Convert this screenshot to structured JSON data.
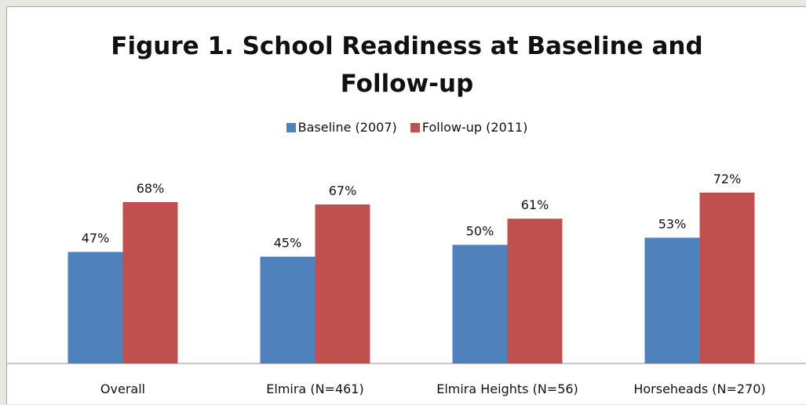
{
  "chart_data": {
    "type": "bar",
    "title_line1": "Figure 1.  School Readiness at Baseline and",
    "title_line2": "Follow-up",
    "categories": [
      "Overall",
      "Elmira (N=461)",
      "Elmira Heights (N=56)",
      "Horseheads (N=270)"
    ],
    "series": [
      {
        "name": "Baseline (2007)",
        "color": "#4f81bd",
        "values": [
          47,
          45,
          50,
          53
        ],
        "labels": [
          "47%",
          "45%",
          "50%",
          "53%"
        ]
      },
      {
        "name": "Follow-up (2011)",
        "color": "#c0504d",
        "values": [
          68,
          67,
          61,
          72
        ],
        "labels": [
          "68%",
          "67%",
          "61%",
          "72%"
        ]
      }
    ],
    "value_unit": "%",
    "ylim": [
      0,
      100
    ],
    "legend_position": "top",
    "grid": false,
    "xlabel": "",
    "ylabel": ""
  }
}
